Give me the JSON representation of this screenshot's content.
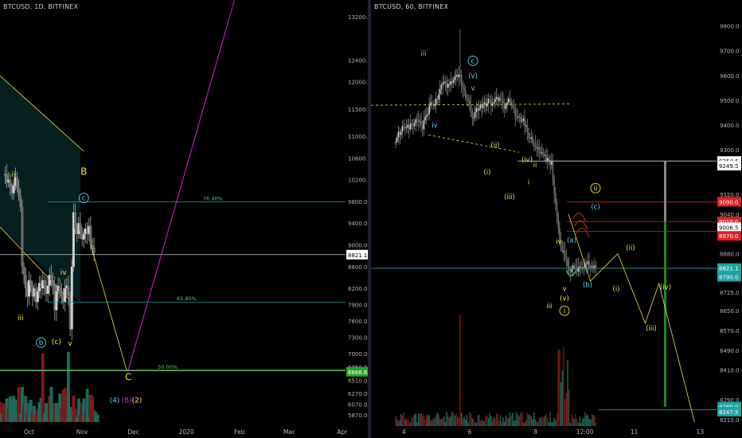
{
  "colors": {
    "background": "#000000",
    "candle": "#a9a9a9",
    "wave_yellow": "#f0e442",
    "wave_cyan": "#5ad1e6",
    "fib_green": "#66c266",
    "fib_teal": "#1fa3a3",
    "target_line": "#cc22cc",
    "resistance_red": "#e02020",
    "price_white": "#ffffff",
    "volume_red": "#7a1a1a",
    "volume_green": "#1a6a5a",
    "projection_green": "#1a8a1a",
    "projection_grey": "#888888"
  },
  "chart_data": [
    {
      "type": "candlestick",
      "title": "BTCUSD, 1D, BITFINEX",
      "xlabel": "",
      "ylabel": "",
      "x_ticks": [
        "Oct",
        "Nov",
        "Dec",
        "2020",
        "Feb",
        "Mar",
        "Apr"
      ],
      "y_ticks": [
        "13200.0",
        "12400.0",
        "12000.0",
        "11500.0",
        "11000.0",
        "10600.0",
        "10200.0",
        "9800.0",
        "9400.0",
        "9000.0",
        "8600.0",
        "8200.0",
        "7900.0",
        "7600.0",
        "7300.0",
        "7000.0",
        "6750.0",
        "6510.0",
        "6270.0",
        "6070.0",
        "5870.0"
      ],
      "y_range": [
        5800,
        13300
      ],
      "last_price_label": "8821.1",
      "level_label": "6666.6",
      "fib_levels": [
        {
          "label": "76.40%",
          "price": 9790
        },
        {
          "label": "61.80%",
          "price": 7950
        },
        {
          "label": "50.00%",
          "price": 6690
        }
      ],
      "wave_labels": [
        {
          "text": "ii",
          "date": "2019-09-22",
          "price": 10250,
          "color": "yellow"
        },
        {
          "text": "iii",
          "date": "2019-09-26",
          "price": 7620,
          "color": "yellow"
        },
        {
          "text": "iv",
          "date": "2019-10-21",
          "price": 8450,
          "color": "yellow"
        },
        {
          "text": "B",
          "date": "2019-11-02",
          "price": 10290,
          "color": "yellow"
        },
        {
          "text": "c",
          "date": "2019-11-02",
          "price": 9820,
          "color": "cyan",
          "circled": true
        },
        {
          "text": "b",
          "date": "2019-10-08",
          "price": 7160,
          "color": "cyan",
          "circled": true
        },
        {
          "text": "(c)",
          "date": "2019-10-17",
          "price": 7180,
          "color": "yellow"
        },
        {
          "text": "v",
          "date": "2019-10-25",
          "price": 7150,
          "color": "yellow"
        },
        {
          "text": "C",
          "date": "2019-11-28",
          "price": 6510,
          "color": "yellow"
        },
        {
          "text": "(4)",
          "date": "2019-11-20",
          "price": 6100,
          "color": "cyan"
        },
        {
          "text": "(B)",
          "date": "2019-11-27",
          "price": 6100,
          "color": "magenta"
        },
        {
          "text": "(2)",
          "date": "2019-12-03",
          "price": 6100,
          "color": "yellow"
        }
      ]
    },
    {
      "type": "candlestick",
      "title": "BTCUSD, 60, BITFINEX",
      "xlabel": "",
      "ylabel": "",
      "x_ticks": [
        "4",
        "6",
        "8",
        "12:00",
        "11",
        "13"
      ],
      "y_ticks": [
        "9800.0",
        "9700.0",
        "9600.0",
        "9500.0",
        "9400.0",
        "9300.0",
        "9120.0",
        "9040.0",
        "8880.0",
        "8800.0",
        "8725.0",
        "8650.0",
        "8570.0",
        "8490.0",
        "8410.0",
        "8290.0",
        "8210.0"
      ],
      "y_range": [
        8200,
        9860
      ],
      "price_labels": [
        {
          "text": "9254.6",
          "price": 9254.6,
          "style": "white"
        },
        {
          "text": "9249.5",
          "price": 9236,
          "style": "white"
        },
        {
          "text": "9090.0",
          "price": 9090,
          "style": "red"
        },
        {
          "text": "9010.0",
          "price": 9010,
          "style": "red"
        },
        {
          "text": "9006.5",
          "price": 8987,
          "style": "white"
        },
        {
          "text": "8970.0",
          "price": 8952,
          "style": "red"
        },
        {
          "text": "8821.1",
          "price": 8822,
          "style": "teal"
        },
        {
          "text": "8790.0",
          "price": 8787,
          "style": "teal"
        },
        {
          "text": "8260.0",
          "price": 8262,
          "style": "teal"
        },
        {
          "text": "8247.5",
          "price": 8242,
          "style": "teal"
        }
      ],
      "resistance_levels": [
        9090,
        9010,
        8970
      ],
      "wave_labels": [
        {
          "text": "iii",
          "date": "2019-11-05",
          "price": 9680,
          "color": "cyan"
        },
        {
          "text": "c",
          "date": "2019-11-06",
          "price": 9650,
          "color": "cyan",
          "circled": true
        },
        {
          "text": "(v)",
          "date": "2019-11-06",
          "price": 9590,
          "color": "cyan"
        },
        {
          "text": "v",
          "date": "2019-11-06",
          "price": 9540,
          "color": "cyan"
        },
        {
          "text": "iv",
          "date": "2019-11-04",
          "price": 9390,
          "color": "cyan"
        },
        {
          "text": "(ii)",
          "date": "2019-11-07",
          "price": 9310,
          "color": "yellow"
        },
        {
          "text": "(i)",
          "date": "2019-11-07",
          "price": 9200,
          "color": "yellow"
        },
        {
          "text": "(iv)",
          "date": "2019-11-07",
          "price": 9250,
          "color": "yellow"
        },
        {
          "text": "ii",
          "date": "2019-11-07",
          "price": 9230,
          "color": "yellow"
        },
        {
          "text": "i",
          "date": "2019-11-07",
          "price": 9160,
          "color": "yellow"
        },
        {
          "text": "(iii)",
          "date": "2019-11-07",
          "price": 9100,
          "color": "yellow"
        },
        {
          "text": "ii",
          "date": "2019-11-09",
          "price": 9135,
          "color": "yellow",
          "circled": true
        },
        {
          "text": "(c)",
          "date": "2019-11-09",
          "price": 9060,
          "color": "cyan"
        },
        {
          "text": "iv",
          "date": "2019-11-08",
          "price": 8920,
          "color": "yellow"
        },
        {
          "text": "(a)",
          "date": "2019-11-08",
          "price": 8925,
          "color": "cyan"
        },
        {
          "text": "(b)",
          "date": "2019-11-08",
          "price": 8745,
          "color": "cyan"
        },
        {
          "text": "v",
          "date": "2019-11-08",
          "price": 8730,
          "color": "yellow"
        },
        {
          "text": "(v)",
          "date": "2019-11-08",
          "price": 8690,
          "color": "yellow"
        },
        {
          "text": "iii",
          "date": "2019-11-08",
          "price": 8660,
          "color": "yellow"
        },
        {
          "text": "i",
          "date": "2019-11-08",
          "price": 8640,
          "color": "yellow",
          "circled": true
        },
        {
          "text": "(ii)",
          "date": "2019-11-09",
          "price": 8895,
          "color": "yellow"
        },
        {
          "text": "(i)",
          "date": "2019-11-09",
          "price": 8730,
          "color": "yellow"
        },
        {
          "text": "(iv)",
          "date": "2019-11-10",
          "price": 8735,
          "color": "yellow"
        },
        {
          "text": "(iii)",
          "date": "2019-11-10",
          "price": 8570,
          "color": "yellow"
        }
      ]
    }
  ]
}
